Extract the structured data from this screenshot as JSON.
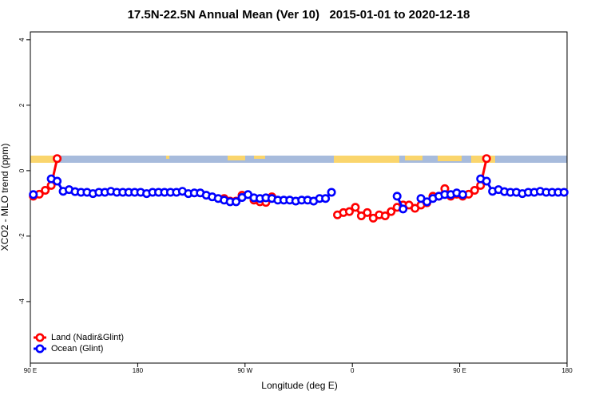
{
  "chart_data": {
    "type": "line",
    "title": "17.5N-22.5N Annual Mean (Ver 10)   2015-01-01 to 2020-12-18",
    "x_label": "Longitude (deg E)",
    "y_label": "XCO2 - MLO trend (ppm)",
    "xlim": [
      90,
      540
    ],
    "xticks": [
      {
        "value": 90,
        "label": "90 E"
      },
      {
        "value": 180,
        "label": "180"
      },
      {
        "value": 270,
        "label": "90 W"
      },
      {
        "value": 360,
        "label": "0"
      },
      {
        "value": 450,
        "label": "90 E"
      },
      {
        "value": 540,
        "label": "180"
      }
    ],
    "ylim": [
      -5.88,
      4.24
    ],
    "yticks": [
      -4,
      -2,
      0,
      2,
      4
    ],
    "legend": "bottom-left",
    "x": [
      92.5,
      97.5,
      102.5,
      107.5,
      112.5,
      117.5,
      122.5,
      127.5,
      132.5,
      137.5,
      142.5,
      147.5,
      152.5,
      157.5,
      162.5,
      167.5,
      172.5,
      177.5,
      182.5,
      187.5,
      192.5,
      197.5,
      202.5,
      207.5,
      212.5,
      217.5,
      222.5,
      227.5,
      232.5,
      237.5,
      242.5,
      247.5,
      252.5,
      257.5,
      262.5,
      267.5,
      272.5,
      277.5,
      282.5,
      287.5,
      292.5,
      297.5,
      302.5,
      307.5,
      312.5,
      317.5,
      322.5,
      327.5,
      332.5,
      337.5,
      342.5,
      347.5,
      352.5,
      357.5,
      362.5,
      367.5,
      372.5,
      377.5,
      382.5,
      387.5,
      392.5,
      397.5,
      402.5,
      407.5,
      412.5,
      417.5,
      422.5,
      427.5,
      432.5,
      437.5,
      442.5,
      447.5,
      452.5,
      457.5,
      462.5,
      467.5,
      472.5,
      477.5,
      482.5,
      487.5,
      492.5,
      497.5,
      502.5,
      507.5,
      512.5,
      517.5,
      522.5,
      527.5,
      532.5,
      537.5
    ],
    "series": [
      {
        "name": "Land (Nadir&Glint)",
        "color": "#ff0000",
        "values": [
          -0.78,
          -0.72,
          -0.6,
          -0.45,
          0.37,
          null,
          null,
          null,
          null,
          null,
          null,
          null,
          null,
          null,
          null,
          null,
          null,
          null,
          null,
          null,
          null,
          null,
          null,
          null,
          null,
          null,
          null,
          null,
          null,
          null,
          null,
          null,
          -0.85,
          -0.93,
          -0.93,
          -0.75,
          null,
          -0.9,
          -0.95,
          -0.97,
          -0.8,
          null,
          null,
          null,
          null,
          null,
          null,
          null,
          null,
          null,
          null,
          -1.35,
          -1.28,
          -1.25,
          -1.12,
          -1.38,
          -1.28,
          -1.45,
          -1.35,
          -1.38,
          -1.25,
          -1.12,
          -1.05,
          -1.05,
          -1.15,
          -1.05,
          -0.98,
          -0.78,
          -0.78,
          -0.55,
          -0.78,
          -0.72,
          -0.78,
          -0.72,
          -0.6,
          -0.45,
          0.37,
          null,
          null,
          null,
          null,
          null,
          null,
          null,
          null,
          null,
          null,
          null,
          null,
          null
        ]
      },
      {
        "name": "Ocean (Glint)",
        "color": "#0000ff",
        "values": [
          -0.73,
          null,
          null,
          -0.25,
          -0.32,
          -0.63,
          -0.58,
          -0.64,
          -0.66,
          -0.66,
          -0.7,
          -0.66,
          -0.66,
          -0.63,
          -0.66,
          -0.66,
          -0.66,
          -0.66,
          -0.66,
          -0.7,
          -0.66,
          -0.66,
          -0.66,
          -0.66,
          -0.66,
          -0.63,
          -0.7,
          -0.68,
          -0.68,
          -0.75,
          -0.8,
          -0.85,
          -0.9,
          -0.95,
          -0.95,
          -0.82,
          -0.73,
          -0.83,
          -0.85,
          -0.83,
          -0.85,
          -0.9,
          -0.9,
          -0.9,
          -0.93,
          -0.9,
          -0.9,
          -0.93,
          -0.85,
          -0.85,
          -0.66,
          null,
          null,
          null,
          null,
          null,
          null,
          null,
          null,
          null,
          null,
          -0.78,
          -1.17,
          null,
          null,
          -0.85,
          -0.95,
          -0.85,
          -0.78,
          -0.73,
          -0.73,
          -0.68,
          -0.73,
          null,
          null,
          -0.25,
          -0.32,
          -0.63,
          -0.58,
          -0.64,
          -0.66,
          -0.66,
          -0.7,
          -0.66,
          -0.66,
          -0.63,
          -0.66,
          -0.66,
          -0.66,
          -0.66
        ]
      }
    ]
  }
}
